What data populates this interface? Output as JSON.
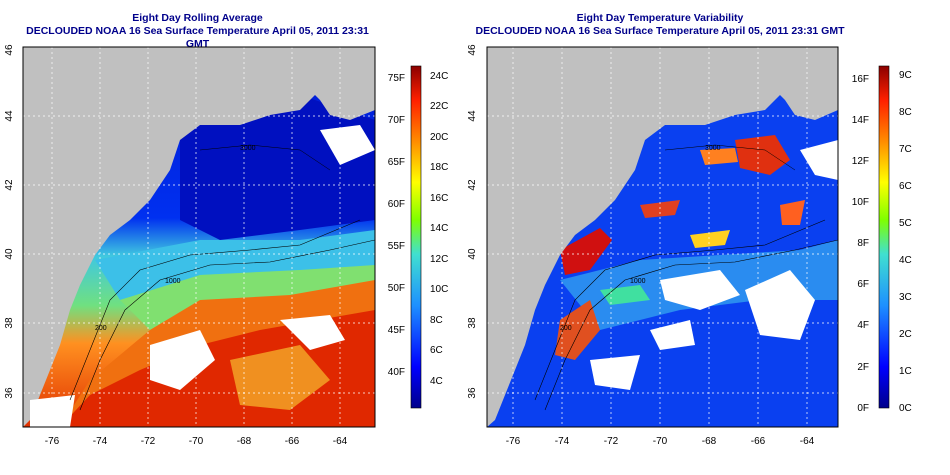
{
  "panels": [
    {
      "title_line1": "Eight Day Rolling Average",
      "title_line2": "DECLOUDED NOAA 16 Sea Surface Temperature April 05, 2011 23:31 GMT",
      "x_ticks": [
        "-76",
        "-74",
        "-72",
        "-70",
        "-68",
        "-66",
        "-64"
      ],
      "y_ticks": [
        "36",
        "38",
        "40",
        "42",
        "44",
        "46"
      ],
      "colorbar_F": [
        "40F",
        "45F",
        "50F",
        "55F",
        "60F",
        "65F",
        "70F",
        "75F"
      ],
      "colorbar_C": [
        "4C",
        "6C",
        "8C",
        "10C",
        "12C",
        "14C",
        "16C",
        "18C",
        "20C",
        "22C",
        "24C"
      ],
      "contours": [
        "200",
        "1000",
        "3000"
      ]
    },
    {
      "title_line1": "Eight Day Temperature Variability",
      "title_line2": "DECLOUDED NOAA 16 Sea Surface Temperature April 05, 2011 23:31 GMT",
      "x_ticks": [
        "-76",
        "-74",
        "-72",
        "-70",
        "-68",
        "-66",
        "-64"
      ],
      "y_ticks": [
        "36",
        "38",
        "40",
        "42",
        "44",
        "46"
      ],
      "colorbar_F": [
        "0F",
        "2F",
        "4F",
        "6F",
        "8F",
        "10F",
        "12F",
        "14F",
        "16F"
      ],
      "colorbar_C": [
        "0C",
        "1C",
        "2C",
        "3C",
        "4C",
        "5C",
        "6C",
        "7C",
        "8C",
        "9C"
      ],
      "contours": [
        "200",
        "1000",
        "3000"
      ]
    }
  ],
  "colors": {
    "title": "#00008b",
    "land": "#c0c0c0",
    "cloud_mask": "#ffffff",
    "grid": "#ffffff"
  }
}
